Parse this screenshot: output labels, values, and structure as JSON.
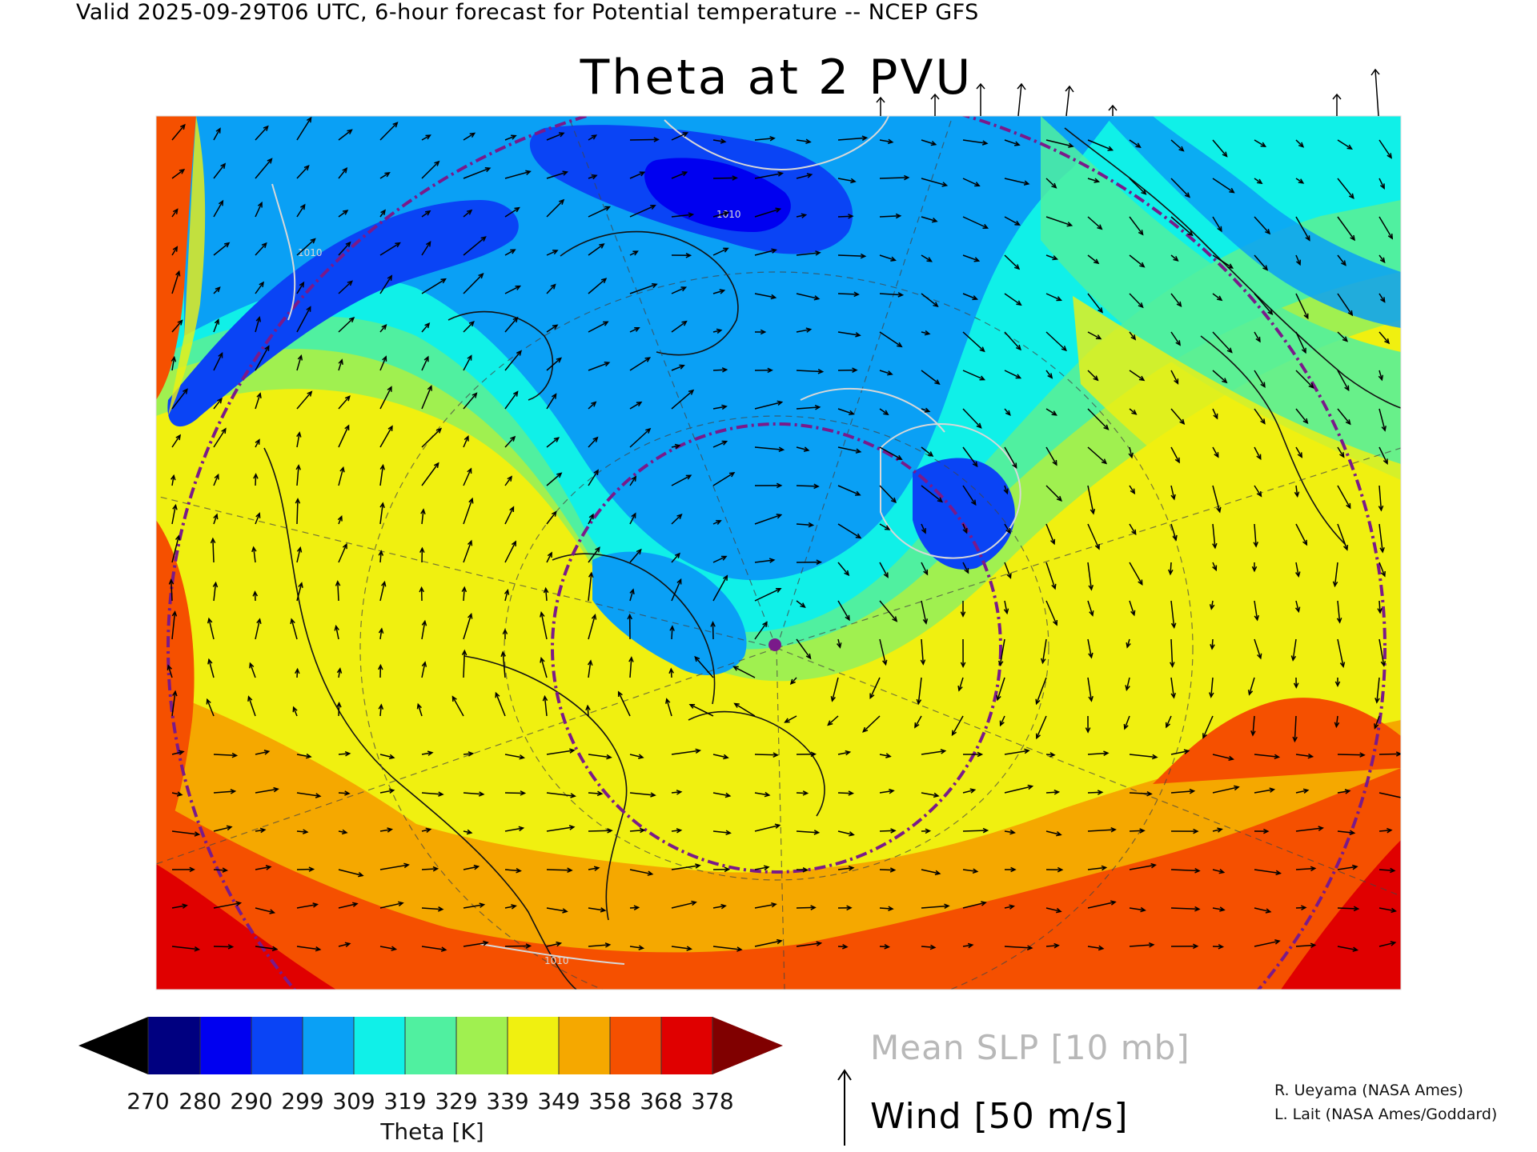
{
  "header": {
    "valid_line": "Valid 2025-09-29T06 UTC, 6-hour forecast for Potential temperature -- NCEP GFS",
    "map_title": "Theta at 2 PVU"
  },
  "map": {
    "projection_note": "",
    "colors": {
      "c270": "#000000",
      "c280": "#000080",
      "c290": "#0000f0",
      "c299": "#0a44f5",
      "c309": "#0aa0f5",
      "c319": "#10f0e8",
      "c329": "#50f0a0",
      "c339": "#a0f050",
      "c349": "#f0f010",
      "c358": "#f5a800",
      "c368": "#f55000",
      "c378": "#e00000",
      "c388": "#800000",
      "contour": "#d8d8d8",
      "circle": "#7a1a8a"
    },
    "contour_labels": [
      "1010",
      "1010",
      "1010"
    ]
  },
  "colorbar": {
    "ticks": [
      "270",
      "280",
      "290",
      "299",
      "309",
      "319",
      "329",
      "339",
      "349",
      "358",
      "368",
      "378"
    ],
    "label": "Theta [K]"
  },
  "legend": {
    "slp": "Mean SLP [10 mb]",
    "wind": "Wind [50 m/s]"
  },
  "credits": [
    "R. Ueyama (NASA Ames)",
    "L. Lait (NASA Ames/Goddard)"
  ]
}
